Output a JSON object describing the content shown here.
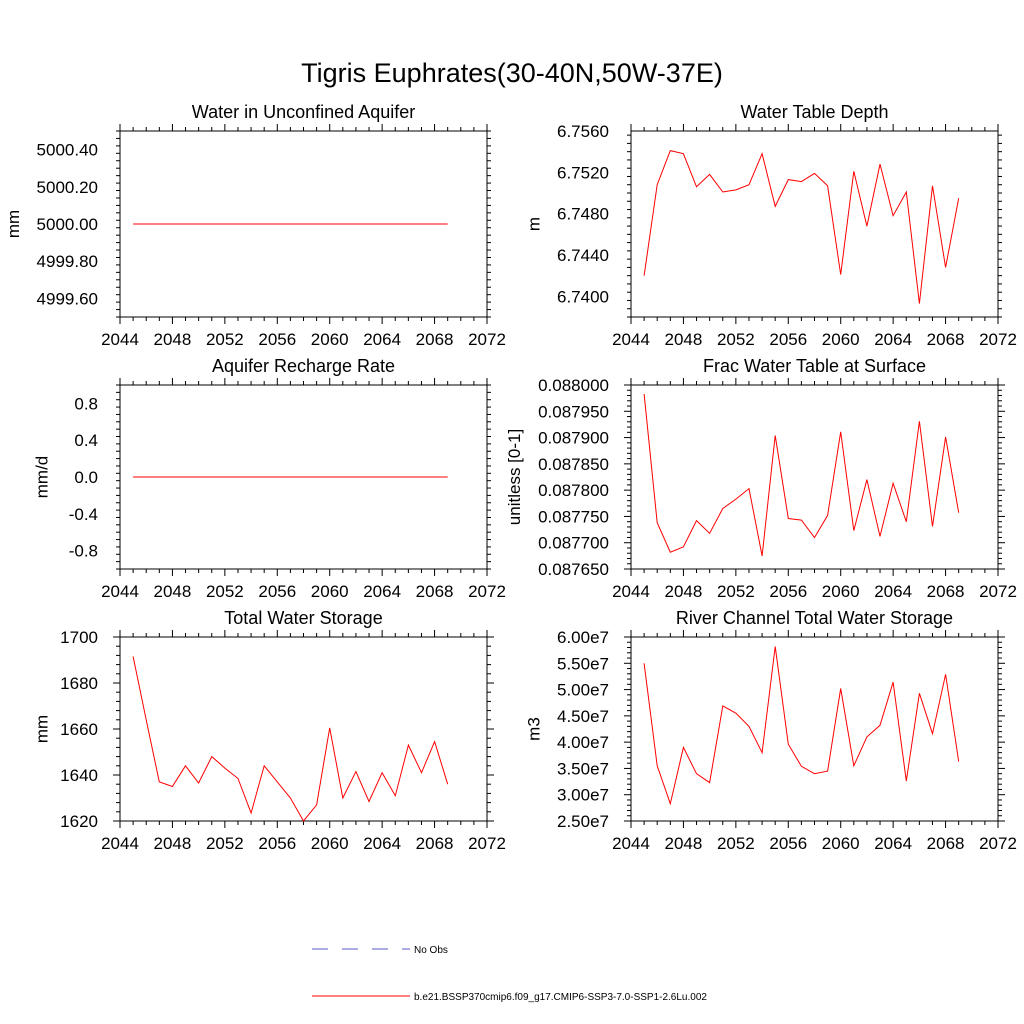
{
  "figure": {
    "title": "Tigris Euphrates(30-40N,50W-37E)"
  },
  "legend": {
    "entries": [
      {
        "label": "No Obs",
        "style": "dashed",
        "color": "#5a5ac8"
      },
      {
        "label": "b.e21.BSSP370cmip6.f09_g17.CMIP6-SSP3-7.0-SSP1-2.6Lu.002",
        "style": "solid",
        "color": "#ff0000"
      }
    ]
  },
  "chart_data": [
    {
      "type": "line",
      "title": "Water in Unconfined Aquifer",
      "xlabel": "",
      "ylabel": "mm",
      "xlim": [
        2044,
        2072
      ],
      "ylim": [
        4999.5,
        5000.5
      ],
      "xticks": [
        "2044",
        "2048",
        "2052",
        "2056",
        "2060",
        "2064",
        "2068",
        "2072"
      ],
      "yticks": [
        {
          "v": 4999.6,
          "label": "4999.60"
        },
        {
          "v": 4999.8,
          "label": "4999.80"
        },
        {
          "v": 5000.0,
          "label": "5000.00"
        },
        {
          "v": 5000.2,
          "label": "5000.20"
        },
        {
          "v": 5000.4,
          "label": "5000.40"
        }
      ],
      "series": [
        {
          "color": "#ff0000",
          "x": [
            2045,
            2046,
            2047,
            2048,
            2049,
            2050,
            2051,
            2052,
            2053,
            2054,
            2055,
            2056,
            2057,
            2058,
            2059,
            2060,
            2061,
            2062,
            2063,
            2064,
            2065,
            2066,
            2067,
            2068,
            2069
          ],
          "y": [
            5000,
            5000,
            5000,
            5000,
            5000,
            5000,
            5000,
            5000,
            5000,
            5000,
            5000,
            5000,
            5000,
            5000,
            5000,
            5000,
            5000,
            5000,
            5000,
            5000,
            5000,
            5000,
            5000,
            5000,
            5000
          ]
        }
      ]
    },
    {
      "type": "line",
      "title": "Water Table Depth",
      "xlabel": "",
      "ylabel": "m",
      "xlim": [
        2044,
        2072
      ],
      "ylim": [
        6.738,
        6.756
      ],
      "xticks": [
        "2044",
        "2048",
        "2052",
        "2056",
        "2060",
        "2064",
        "2068",
        "2072"
      ],
      "yticks": [
        {
          "v": 6.74,
          "label": "6.7400"
        },
        {
          "v": 6.744,
          "label": "6.7440"
        },
        {
          "v": 6.748,
          "label": "6.7480"
        },
        {
          "v": 6.752,
          "label": "6.7520"
        },
        {
          "v": 6.756,
          "label": "6.7560"
        }
      ],
      "series": [
        {
          "color": "#ff0000",
          "x": [
            2045,
            2046,
            2047,
            2048,
            2049,
            2050,
            2051,
            2052,
            2053,
            2054,
            2055,
            2056,
            2057,
            2058,
            2059,
            2060,
            2061,
            2062,
            2063,
            2064,
            2065,
            2066,
            2067,
            2068,
            2069
          ],
          "y": [
            6.742,
            6.7508,
            6.7541,
            6.7538,
            6.7506,
            6.7518,
            6.7501,
            6.7503,
            6.7508,
            6.7538,
            6.7487,
            6.7513,
            6.7511,
            6.7519,
            6.7507,
            6.7421,
            6.7521,
            6.7468,
            6.7528,
            6.7478,
            6.7501,
            6.7393,
            6.7507,
            6.7428,
            6.7495
          ]
        }
      ]
    },
    {
      "type": "line",
      "title": "Aquifer Recharge Rate",
      "xlabel": "",
      "ylabel": "mm/d",
      "xlim": [
        2044,
        2072
      ],
      "ylim": [
        -1.0,
        1.0
      ],
      "xticks": [
        "2044",
        "2048",
        "2052",
        "2056",
        "2060",
        "2064",
        "2068",
        "2072"
      ],
      "yticks": [
        {
          "v": -0.8,
          "label": "-0.8"
        },
        {
          "v": -0.4,
          "label": "-0.4"
        },
        {
          "v": 0.0,
          "label": "0.0"
        },
        {
          "v": 0.4,
          "label": "0.4"
        },
        {
          "v": 0.8,
          "label": "0.8"
        }
      ],
      "series": [
        {
          "color": "#ff0000",
          "x": [
            2045,
            2046,
            2047,
            2048,
            2049,
            2050,
            2051,
            2052,
            2053,
            2054,
            2055,
            2056,
            2057,
            2058,
            2059,
            2060,
            2061,
            2062,
            2063,
            2064,
            2065,
            2066,
            2067,
            2068,
            2069
          ],
          "y": [
            0,
            0,
            0,
            0,
            0,
            0,
            0,
            0,
            0,
            0,
            0,
            0,
            0,
            0,
            0,
            0,
            0,
            0,
            0,
            0,
            0,
            0,
            0,
            0,
            0
          ]
        }
      ]
    },
    {
      "type": "line",
      "title": "Frac Water Table at Surface",
      "xlabel": "",
      "ylabel": "unitless [0-1]",
      "xlim": [
        2044,
        2072
      ],
      "ylim": [
        0.08765,
        0.088
      ],
      "xticks": [
        "2044",
        "2048",
        "2052",
        "2056",
        "2060",
        "2064",
        "2068",
        "2072"
      ],
      "yticks": [
        {
          "v": 0.08765,
          "label": "0.087650"
        },
        {
          "v": 0.0877,
          "label": "0.087700"
        },
        {
          "v": 0.08775,
          "label": "0.087750"
        },
        {
          "v": 0.0878,
          "label": "0.087800"
        },
        {
          "v": 0.08785,
          "label": "0.087850"
        },
        {
          "v": 0.0879,
          "label": "0.087900"
        },
        {
          "v": 0.08795,
          "label": "0.087950"
        },
        {
          "v": 0.088,
          "label": "0.088000"
        }
      ],
      "series": [
        {
          "color": "#ff0000",
          "x": [
            2045,
            2046,
            2047,
            2048,
            2049,
            2050,
            2051,
            2052,
            2053,
            2054,
            2055,
            2056,
            2057,
            2058,
            2059,
            2060,
            2061,
            2062,
            2063,
            2064,
            2065,
            2066,
            2067,
            2068,
            2069
          ],
          "y": [
            0.087983,
            0.087738,
            0.087682,
            0.087692,
            0.087742,
            0.087718,
            0.087765,
            0.087783,
            0.087803,
            0.087675,
            0.087904,
            0.087746,
            0.087743,
            0.08771,
            0.087752,
            0.087911,
            0.087723,
            0.08782,
            0.087712,
            0.087813,
            0.08774,
            0.087931,
            0.087731,
            0.087901,
            0.087757
          ]
        }
      ]
    },
    {
      "type": "line",
      "title": "Total Water Storage",
      "xlabel": "",
      "ylabel": "mm",
      "xlim": [
        2044,
        2072
      ],
      "ylim": [
        1620,
        1700
      ],
      "xticks": [
        "2044",
        "2048",
        "2052",
        "2056",
        "2060",
        "2064",
        "2068",
        "2072"
      ],
      "yticks": [
        {
          "v": 1620,
          "label": "1620"
        },
        {
          "v": 1640,
          "label": "1640"
        },
        {
          "v": 1660,
          "label": "1660"
        },
        {
          "v": 1680,
          "label": "1680"
        },
        {
          "v": 1700,
          "label": "1700"
        }
      ],
      "series": [
        {
          "color": "#ff0000",
          "x": [
            2045,
            2046,
            2047,
            2048,
            2049,
            2050,
            2051,
            2052,
            2053,
            2054,
            2055,
            2056,
            2057,
            2058,
            2059,
            2060,
            2061,
            2062,
            2063,
            2064,
            2065,
            2066,
            2067,
            2068,
            2069
          ],
          "y": [
            1691.5,
            1664,
            1637,
            1635,
            1644,
            1636.5,
            1648,
            1643,
            1638.5,
            1623.5,
            1644,
            1637,
            1630,
            1620,
            1627,
            1660.5,
            1630,
            1641.5,
            1628.5,
            1641,
            1631,
            1653,
            1641,
            1654.5,
            1636
          ]
        }
      ]
    },
    {
      "type": "line",
      "title": "River Channel Total Water Storage",
      "xlabel": "",
      "ylabel": "m3",
      "xlim": [
        2044,
        2072
      ],
      "ylim": [
        25000000,
        60000000
      ],
      "xticks": [
        "2044",
        "2048",
        "2052",
        "2056",
        "2060",
        "2064",
        "2068",
        "2072"
      ],
      "yticks": [
        {
          "v": 25000000,
          "label": "2.50e7"
        },
        {
          "v": 30000000,
          "label": "3.00e7"
        },
        {
          "v": 35000000,
          "label": "3.50e7"
        },
        {
          "v": 40000000,
          "label": "4.00e7"
        },
        {
          "v": 45000000,
          "label": "4.50e7"
        },
        {
          "v": 50000000,
          "label": "5.00e7"
        },
        {
          "v": 55000000,
          "label": "5.50e7"
        },
        {
          "v": 60000000,
          "label": "6.00e7"
        }
      ],
      "series": [
        {
          "color": "#ff0000",
          "x": [
            2045,
            2046,
            2047,
            2048,
            2049,
            2050,
            2051,
            2052,
            2053,
            2054,
            2055,
            2056,
            2057,
            2058,
            2059,
            2060,
            2061,
            2062,
            2063,
            2064,
            2065,
            2066,
            2067,
            2068,
            2069
          ],
          "y": [
            55000000,
            35500000,
            28300000,
            39000000,
            34000000,
            32300000,
            46900000,
            45500000,
            43000000,
            38000000,
            58200000,
            39600000,
            35400000,
            34000000,
            34500000,
            50200000,
            35500000,
            41000000,
            43200000,
            51400000,
            32600000,
            49300000,
            41600000,
            52900000,
            36300000
          ]
        }
      ]
    }
  ]
}
